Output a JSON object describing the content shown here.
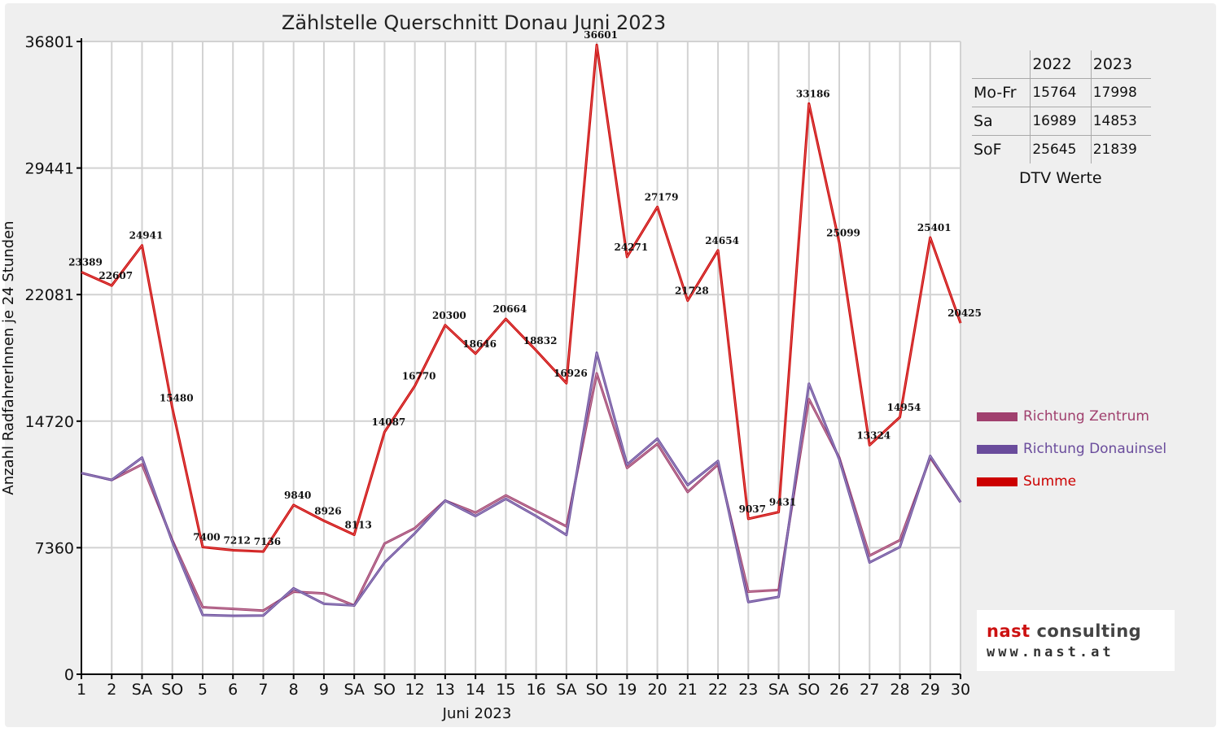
{
  "chart_data": {
    "type": "line",
    "title": "Zählstelle Querschnitt Donau Juni 2023",
    "xlabel": "Juni 2023",
    "ylabel": "Anzahl RadfahrerInnen je 24 Stunden",
    "ylim": [
      0,
      36801
    ],
    "yticks": [
      "0",
      "7360",
      "14720",
      "22081",
      "29441",
      "36801"
    ],
    "ytick_values": [
      0,
      7360,
      14720,
      22081,
      29441,
      36801
    ],
    "categories": [
      "1",
      "2",
      "SA",
      "SO",
      "5",
      "6",
      "7",
      "8",
      "9",
      "SA",
      "SO",
      "12",
      "13",
      "14",
      "15",
      "16",
      "SA",
      "SO",
      "19",
      "20",
      "21",
      "22",
      "23",
      "SA",
      "SO",
      "26",
      "27",
      "28",
      "29",
      "30"
    ],
    "red_categories": [
      3,
      7,
      10,
      17,
      24
    ],
    "grid": "vertical",
    "legend_position": "right",
    "series": [
      {
        "name": "Richtung Zentrum",
        "color": "#a0406e",
        "values": [
          11700,
          11300,
          12200,
          7800,
          3900,
          3800,
          3700,
          4800,
          4700,
          4000,
          7600,
          8500,
          10100,
          9400,
          10400,
          9500,
          8600,
          17500,
          12000,
          13400,
          10600,
          12200,
          4800,
          4900,
          16000,
          12600,
          6900,
          7800,
          12600,
          10000
        ]
      },
      {
        "name": "Richtung Donauinsel",
        "color": "#6a4c9c",
        "values": [
          11700,
          11300,
          12600,
          7700,
          3450,
          3400,
          3420,
          5000,
          4100,
          4000,
          6500,
          8200,
          10100,
          9200,
          10200,
          9200,
          8100,
          18700,
          12200,
          13700,
          11000,
          12400,
          4200,
          4500,
          16900,
          12500,
          6500,
          7400,
          12700,
          10000
        ]
      },
      {
        "name": "Summe",
        "color": "#cc0000",
        "values": [
          23389,
          22607,
          24941,
          15480,
          7400,
          7212,
          7136,
          9840,
          8926,
          8113,
          14087,
          16770,
          20300,
          18646,
          20664,
          18832,
          16926,
          36601,
          24271,
          27179,
          21728,
          24654,
          9037,
          9431,
          33186,
          25099,
          13324,
          14954,
          25401,
          20425
        ],
        "labels": [
          "23389",
          "22607",
          "24941",
          "15480",
          "7400",
          "7212",
          "7136",
          "9840",
          "8926",
          "8113",
          "14087",
          "16770",
          "20300",
          "18646",
          "20664",
          "18832",
          "16926",
          "36601",
          "24271",
          "27179",
          "21728",
          "24654",
          "9037",
          "9431",
          "33186",
          "25099",
          "13324",
          "14954",
          "25401",
          "20425"
        ]
      }
    ]
  },
  "dtv_table": {
    "headers": [
      "",
      "2022",
      "2023"
    ],
    "rows": [
      {
        "label": "Mo-Fr",
        "v2022": "15764",
        "v2023": "17998"
      },
      {
        "label": "Sa",
        "v2022": "16989",
        "v2023": "14853"
      },
      {
        "label": "SoF",
        "v2022": "25645",
        "v2023": "21839"
      }
    ],
    "caption": "DTV Werte"
  },
  "logo": {
    "name_part1": "nast",
    "name_part2": " consulting",
    "url": "www.nast.at"
  }
}
